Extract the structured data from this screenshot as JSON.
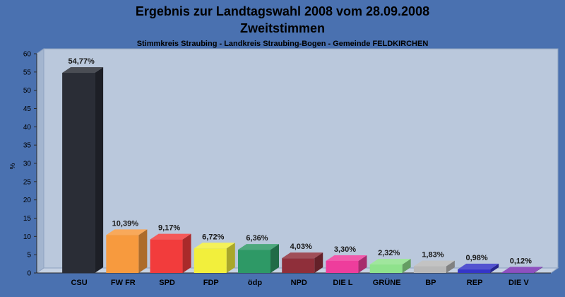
{
  "chart_data": {
    "type": "bar",
    "title": "Ergebnis zur Landtagswahl 2008 vom 28.09.2008",
    "subtitle": "Zweitstimmen",
    "subtitle2": "Stimmkreis Straubing - Landkreis Straubing-Bogen - Gemeinde FELDKIRCHEN",
    "xlabel": "",
    "ylabel": "%",
    "ylim": [
      0,
      60
    ],
    "yticks": [
      0,
      5,
      10,
      15,
      20,
      25,
      30,
      35,
      40,
      45,
      50,
      55,
      60
    ],
    "categories": [
      "CSU",
      "FW FR",
      "SPD",
      "FDP",
      "ödp",
      "NPD",
      "DIE L",
      "GRÜNE",
      "BP",
      "REP",
      "DIE V"
    ],
    "values": [
      54.77,
      10.39,
      9.17,
      6.72,
      6.36,
      4.03,
      3.3,
      2.32,
      1.83,
      0.98,
      0.12
    ],
    "value_labels": [
      "54,77%",
      "10,39%",
      "9,17%",
      "6,72%",
      "6,36%",
      "4,03%",
      "3,30%",
      "2,32%",
      "1,83%",
      "0,98%",
      "0,12%"
    ],
    "colors": [
      "#2a2d36",
      "#f79a3e",
      "#f23c3c",
      "#f2ef3c",
      "#2e9966",
      "#8f2f3a",
      "#ee3d9c",
      "#8fe28c",
      "#b8b8b8",
      "#3535c8",
      "#7a32b4"
    ],
    "grid": false,
    "legend": "none"
  },
  "style": {
    "background": "#4a71b0",
    "plot_back": "#bac8dc",
    "plot_floor": "#c6d2e3",
    "plot_side": "#a3b5cf"
  }
}
